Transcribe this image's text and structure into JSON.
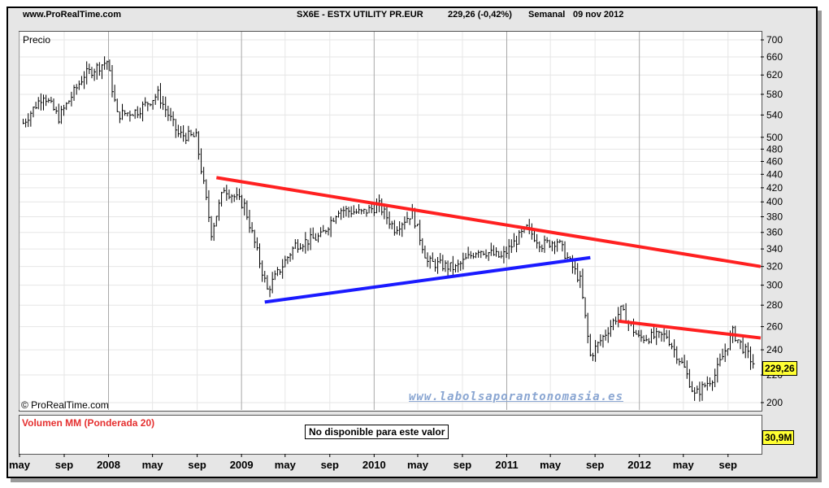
{
  "header": {
    "site": "www.ProRealTime.com",
    "symbol": "SX6E - ESTX UTILITY PR.EUR",
    "last_quote": "229,26 (-0,42%)",
    "period": "Semanal",
    "date": "09 nov 2012"
  },
  "price_panel": {
    "label": "Precio",
    "copyright": "© ProRealTime.com",
    "watermark": "www.labolsaporantonomasia.es",
    "last_value_tag": "229,26"
  },
  "volume_panel": {
    "label": "Volumen MM (Ponderada 20)",
    "notice": "No disponible para este valor",
    "value_tag": "30,9M"
  },
  "colors": {
    "resistance": "#ff2020",
    "support": "#1a1aff",
    "bars": "#000000",
    "tag": "#ffff33"
  },
  "chart_data": {
    "type": "ohlc",
    "frequency": "weekly",
    "y_scale": "log",
    "ylim": [
      195,
      720
    ],
    "y_ticks": [
      200,
      220,
      240,
      260,
      280,
      300,
      320,
      340,
      360,
      380,
      400,
      420,
      440,
      460,
      480,
      500,
      540,
      580,
      620,
      660,
      700
    ],
    "x_range": [
      "2007-05-01",
      "2012-11-30"
    ],
    "x_ticks": [
      {
        "label": "may",
        "date": "2007-05-01"
      },
      {
        "label": "sep",
        "date": "2007-09-01"
      },
      {
        "label": "2008",
        "date": "2008-01-01"
      },
      {
        "label": "may",
        "date": "2008-05-01"
      },
      {
        "label": "sep",
        "date": "2008-09-01"
      },
      {
        "label": "2009",
        "date": "2009-01-01"
      },
      {
        "label": "may",
        "date": "2009-05-01"
      },
      {
        "label": "sep",
        "date": "2009-09-01"
      },
      {
        "label": "2010",
        "date": "2010-01-01"
      },
      {
        "label": "may",
        "date": "2010-05-01"
      },
      {
        "label": "sep",
        "date": "2010-09-01"
      },
      {
        "label": "2011",
        "date": "2011-01-01"
      },
      {
        "label": "may",
        "date": "2011-05-01"
      },
      {
        "label": "sep",
        "date": "2011-09-01"
      },
      {
        "label": "2012",
        "date": "2012-01-01"
      },
      {
        "label": "may",
        "date": "2012-05-01"
      },
      {
        "label": "sep",
        "date": "2012-09-01"
      }
    ],
    "close_path": [
      {
        "date": "2007-05-11",
        "value": 525
      },
      {
        "date": "2007-07-06",
        "value": 580
      },
      {
        "date": "2007-08-17",
        "value": 535
      },
      {
        "date": "2007-10-26",
        "value": 620
      },
      {
        "date": "2007-12-28",
        "value": 650
      },
      {
        "date": "2008-01-25",
        "value": 540
      },
      {
        "date": "2008-03-21",
        "value": 548
      },
      {
        "date": "2008-05-16",
        "value": 580
      },
      {
        "date": "2008-07-11",
        "value": 505
      },
      {
        "date": "2008-08-29",
        "value": 500
      },
      {
        "date": "2008-10-10",
        "value": 360
      },
      {
        "date": "2008-11-14",
        "value": 420
      },
      {
        "date": "2009-01-09",
        "value": 395
      },
      {
        "date": "2009-03-13",
        "value": 295
      },
      {
        "date": "2009-05-29",
        "value": 345
      },
      {
        "date": "2009-08-07",
        "value": 355
      },
      {
        "date": "2009-09-25",
        "value": 390
      },
      {
        "date": "2009-11-27",
        "value": 385
      },
      {
        "date": "2010-01-15",
        "value": 395
      },
      {
        "date": "2010-02-26",
        "value": 365
      },
      {
        "date": "2010-04-16",
        "value": 385
      },
      {
        "date": "2010-05-28",
        "value": 325
      },
      {
        "date": "2010-08-13",
        "value": 318
      },
      {
        "date": "2010-10-15",
        "value": 340
      },
      {
        "date": "2010-12-17",
        "value": 330
      },
      {
        "date": "2011-02-25",
        "value": 365
      },
      {
        "date": "2011-04-08",
        "value": 345
      },
      {
        "date": "2011-05-20",
        "value": 350
      },
      {
        "date": "2011-07-22",
        "value": 305
      },
      {
        "date": "2011-08-19",
        "value": 235
      },
      {
        "date": "2011-11-11",
        "value": 275
      },
      {
        "date": "2011-12-30",
        "value": 250
      },
      {
        "date": "2012-03-16",
        "value": 252
      },
      {
        "date": "2012-05-04",
        "value": 225
      },
      {
        "date": "2012-06-01",
        "value": 205
      },
      {
        "date": "2012-07-27",
        "value": 220
      },
      {
        "date": "2012-09-14",
        "value": 255
      },
      {
        "date": "2012-11-09",
        "value": 229.26
      }
    ],
    "annotations": [
      {
        "type": "resistance",
        "color": "#ff2020",
        "from": {
          "date": "2008-10-24",
          "value": 435
        },
        "to": {
          "date": "2012-11-30",
          "value": 320
        }
      },
      {
        "type": "support",
        "color": "#1a1aff",
        "from": {
          "date": "2009-03-06",
          "value": 283
        },
        "to": {
          "date": "2011-08-19",
          "value": 330
        }
      },
      {
        "type": "resistance",
        "color": "#ff2020",
        "from": {
          "date": "2011-11-04",
          "value": 265
        },
        "to": {
          "date": "2012-11-30",
          "value": 250
        }
      }
    ]
  }
}
